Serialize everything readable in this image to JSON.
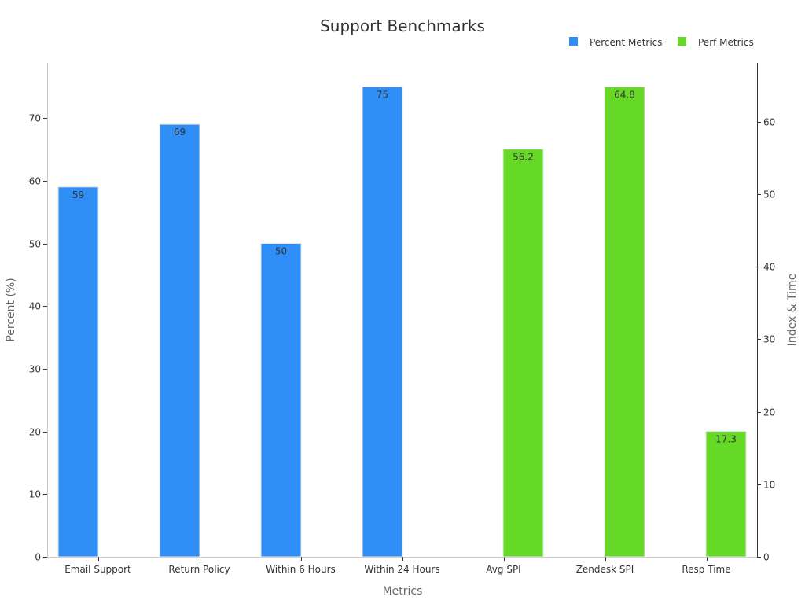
{
  "chart_data": {
    "type": "bar",
    "title": "Support Benchmarks",
    "xlabel": "Metrics",
    "ylabel": "Percent (%)",
    "y2label": "Index & Time",
    "categories": [
      "Email Support",
      "Return Policy",
      "Within 6 Hours",
      "Within 24 Hours",
      "Avg SPI",
      "Zendesk SPI",
      "Resp Time"
    ],
    "ylim": [
      0,
      78.8
    ],
    "y2lim": [
      0,
      68.1
    ],
    "yticks": [
      0,
      10,
      20,
      30,
      40,
      50,
      60,
      70
    ],
    "y2ticks": [
      0,
      10,
      20,
      30,
      40,
      50,
      60
    ],
    "legend_position": "top-right",
    "grid": false,
    "series": [
      {
        "name": "Percent Metrics",
        "axis": "left",
        "color": "#2f8ff7",
        "values": [
          59,
          69,
          50,
          75,
          null,
          null,
          null
        ]
      },
      {
        "name": "Perf Metrics",
        "axis": "right",
        "color": "#66d926",
        "values": [
          null,
          null,
          null,
          null,
          56.2,
          64.8,
          17.3
        ]
      }
    ]
  }
}
